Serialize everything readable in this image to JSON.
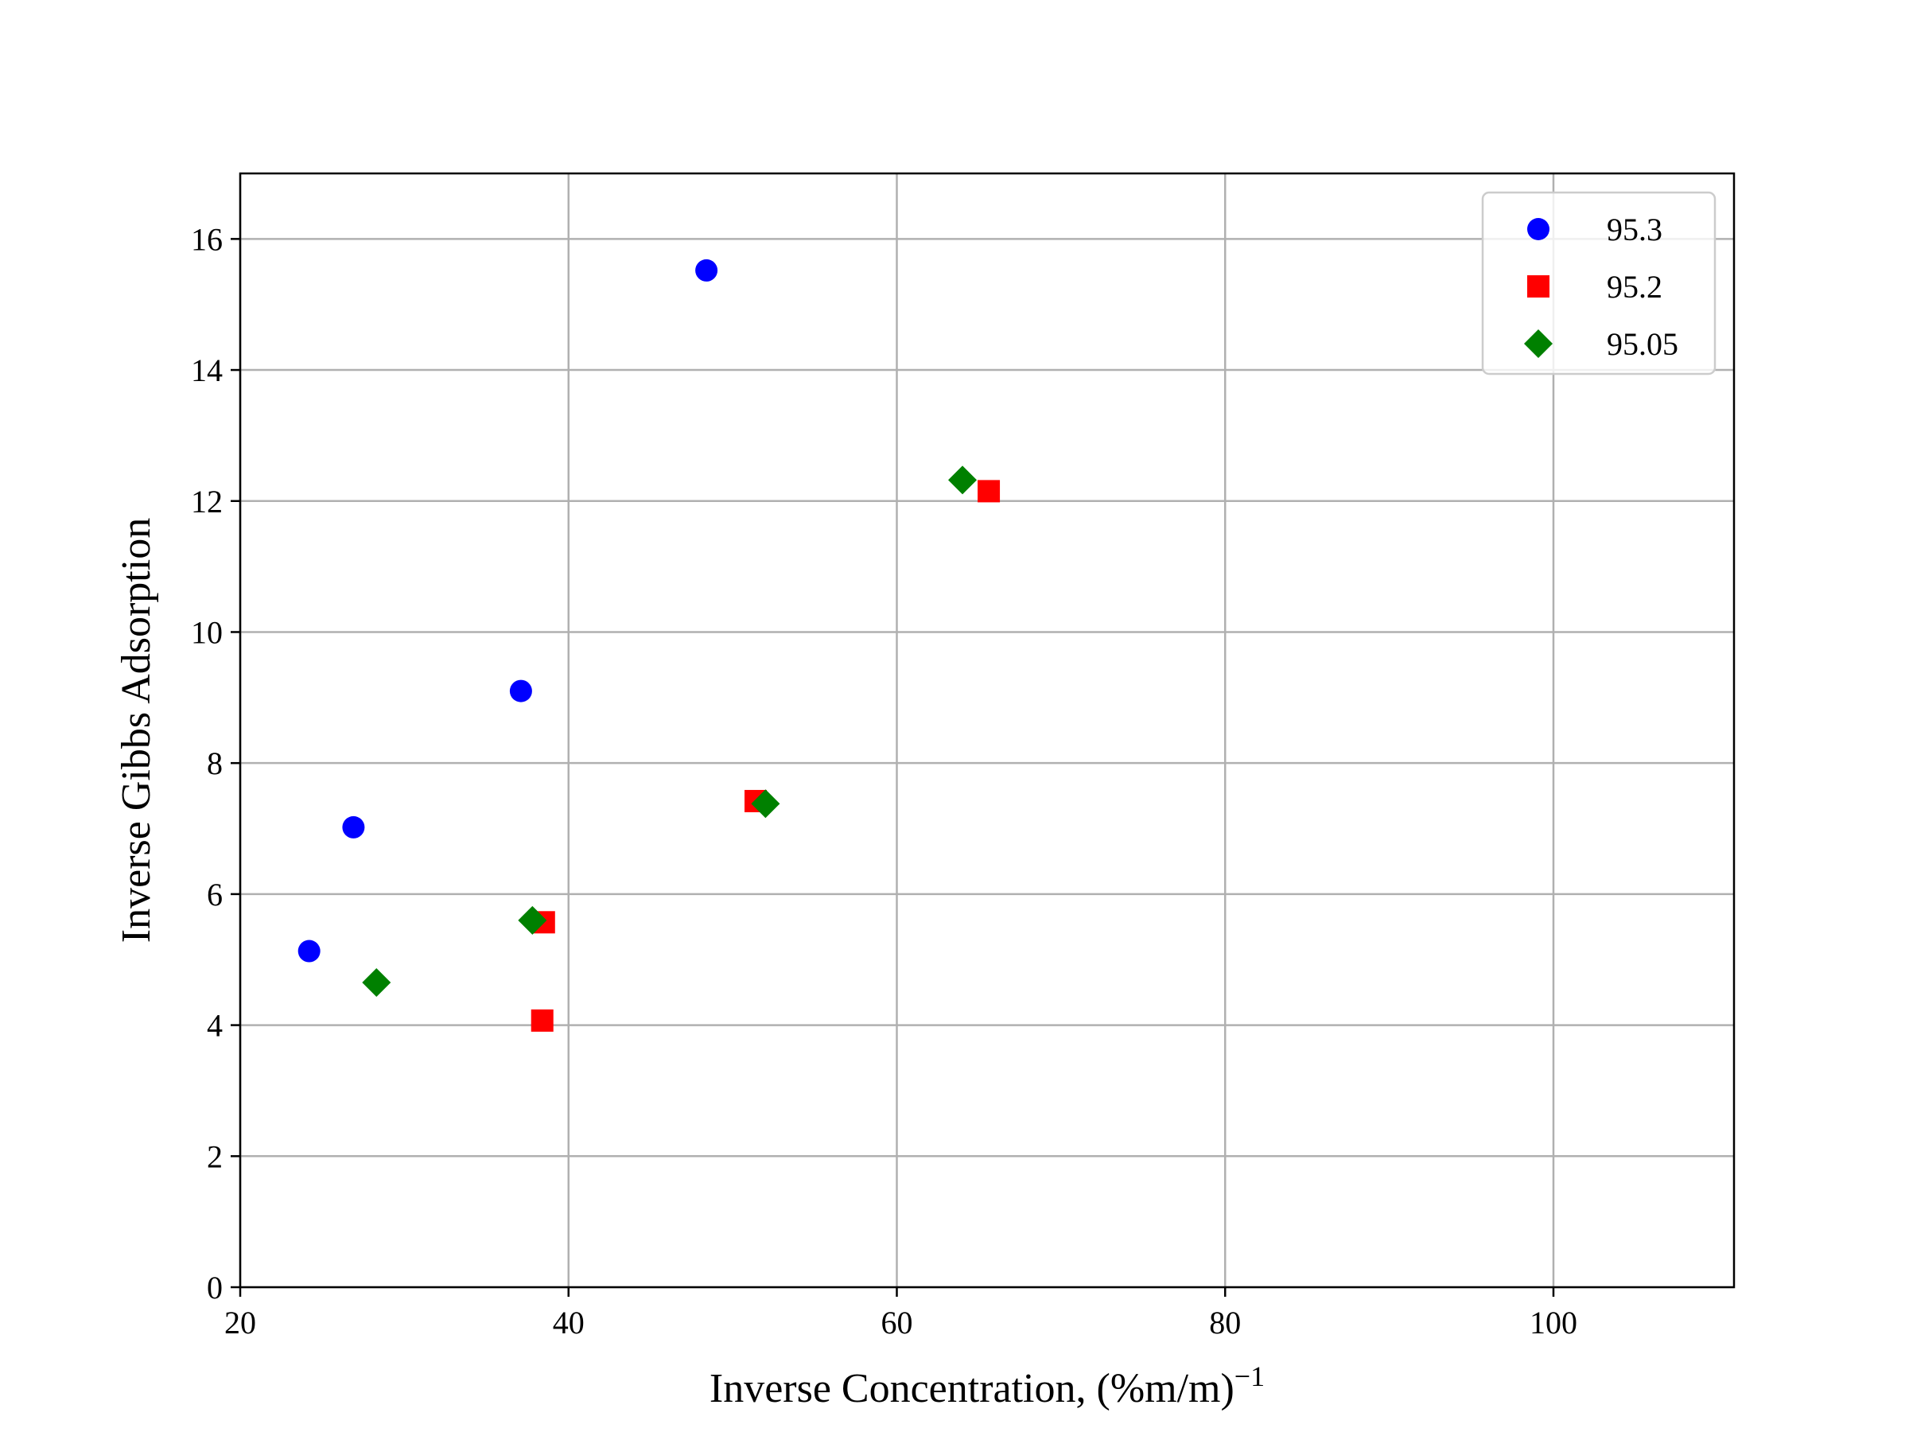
{
  "chart_data": {
    "type": "scatter",
    "title": "",
    "xlabel": "Inverse Concentration, (%m/m)",
    "xlabel_superscript": "−1",
    "ylabel": "Inverse Gibbs Adsorption",
    "xlim": [
      20,
      111
    ],
    "ylim": [
      0,
      17
    ],
    "xticks": [
      20,
      40,
      60,
      80,
      100
    ],
    "yticks": [
      0,
      2,
      4,
      6,
      8,
      10,
      12,
      14,
      16
    ],
    "grid": true,
    "legend_position": "top-right",
    "series": [
      {
        "name": "95.3",
        "marker": "circle",
        "color": "#0000ff",
        "points": [
          {
            "x": 24.2,
            "y": 5.13
          },
          {
            "x": 26.9,
            "y": 7.02
          },
          {
            "x": 37.1,
            "y": 9.1
          },
          {
            "x": 48.4,
            "y": 15.52
          }
        ]
      },
      {
        "name": "95.2",
        "marker": "square",
        "color": "#ff0000",
        "points": [
          {
            "x": 38.5,
            "y": 5.57
          },
          {
            "x": 38.4,
            "y": 4.07
          },
          {
            "x": 51.4,
            "y": 7.42
          },
          {
            "x": 65.6,
            "y": 12.15
          }
        ]
      },
      {
        "name": "95.05",
        "marker": "diamond",
        "color": "#008000",
        "points": [
          {
            "x": 28.3,
            "y": 4.65
          },
          {
            "x": 37.8,
            "y": 5.6
          },
          {
            "x": 52.0,
            "y": 7.38
          },
          {
            "x": 64.0,
            "y": 12.32
          }
        ]
      }
    ]
  }
}
